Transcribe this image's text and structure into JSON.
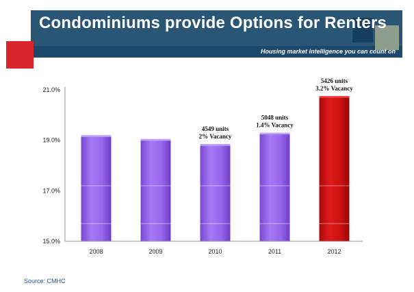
{
  "slide": {
    "title": "Condominiums provide Options for Renters",
    "tagline": "Housing market intelligence you can count on",
    "source": "Source: CMHC"
  },
  "chart_data": {
    "type": "bar",
    "title": "",
    "xlabel": "",
    "ylabel": "",
    "categories": [
      "2008",
      "2009",
      "2010",
      "2011",
      "2012"
    ],
    "values": [
      19.2,
      19.05,
      18.85,
      19.3,
      20.75
    ],
    "ylim": [
      15.0,
      21.0
    ],
    "yticks": [
      "15.0%",
      "17.0%",
      "19.0%",
      "21.0%"
    ],
    "ytick_values": [
      15,
      17,
      19,
      21
    ],
    "colors": [
      "#9966ee",
      "#9966ee",
      "#9966ee",
      "#9966ee",
      "#cc1111"
    ],
    "annotations": [
      {
        "index": 2,
        "line1": "4549 units",
        "line2": "2% Vacancy"
      },
      {
        "index": 3,
        "line1": "5048 units",
        "line2": "1.4% Vacancy"
      },
      {
        "index": 4,
        "line1": "5426 units",
        "line2": "3.2% Vacancy"
      }
    ]
  },
  "colors": {
    "banner": "#2a5676",
    "accent_red": "#d7252a",
    "bar": "#9966ee",
    "highlight_bar": "#cc1111"
  }
}
